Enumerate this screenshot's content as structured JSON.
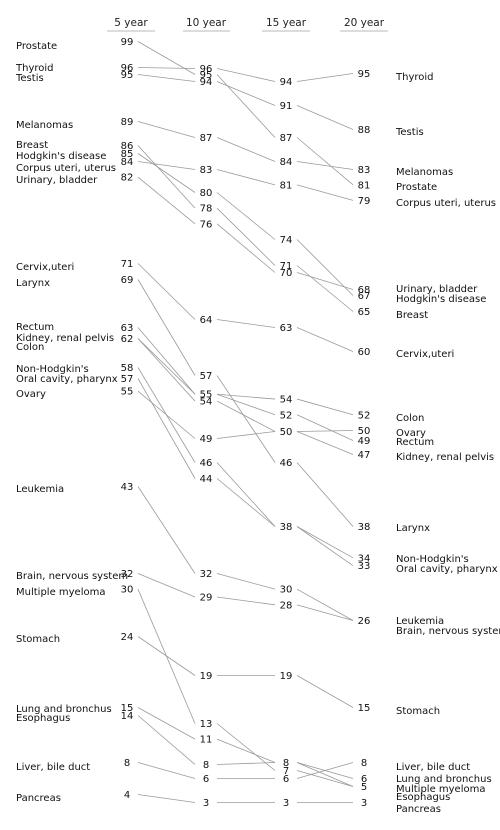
{
  "chart_data": {
    "type": "slopegraph",
    "columns": [
      "5 year",
      "10 year",
      "15 year",
      "20 year"
    ],
    "series": [
      {
        "name": "Prostate",
        "values": [
          99,
          95,
          87,
          81
        ]
      },
      {
        "name": "Thyroid",
        "values": [
          96,
          96,
          94,
          95
        ]
      },
      {
        "name": "Testis",
        "values": [
          95,
          94,
          91,
          88
        ]
      },
      {
        "name": "Melanomas",
        "values": [
          89,
          87,
          84,
          83
        ]
      },
      {
        "name": "Breast",
        "values": [
          86,
          78,
          71,
          65
        ]
      },
      {
        "name": "Hodgkin's disease",
        "values": [
          85,
          80,
          74,
          67
        ]
      },
      {
        "name": "Corpus uteri, uterus",
        "values": [
          84,
          83,
          81,
          79
        ]
      },
      {
        "name": "Urinary, bladder",
        "values": [
          82,
          76,
          70,
          68
        ]
      },
      {
        "name": "Cervix,uteri",
        "values": [
          71,
          64,
          63,
          60
        ]
      },
      {
        "name": "Larynx",
        "values": [
          69,
          57,
          46,
          38
        ]
      },
      {
        "name": "Rectum",
        "values": [
          63,
          55,
          52,
          49
        ]
      },
      {
        "name": "Kidney, renal pelvis",
        "values": [
          62,
          54,
          50,
          47
        ]
      },
      {
        "name": "Colon",
        "values": [
          62,
          55,
          54,
          52
        ]
      },
      {
        "name": "Non-Hodgkin's",
        "values": [
          58,
          46,
          38,
          34
        ]
      },
      {
        "name": "Oral cavity, pharynx",
        "values": [
          57,
          44,
          38,
          33
        ]
      },
      {
        "name": "Ovary",
        "values": [
          55,
          49,
          50,
          50
        ]
      },
      {
        "name": "Leukemia",
        "values": [
          43,
          32,
          30,
          26
        ]
      },
      {
        "name": "Brain, nervous system",
        "values": [
          32,
          29,
          28,
          26
        ]
      },
      {
        "name": "Multiple myeloma",
        "values": [
          30,
          13,
          7,
          5
        ]
      },
      {
        "name": "Stomach",
        "values": [
          24,
          19,
          19,
          15
        ]
      },
      {
        "name": "Lung and bronchus",
        "values": [
          15,
          11,
          8,
          6
        ]
      },
      {
        "name": "Esophagus",
        "values": [
          14,
          8,
          8,
          5
        ]
      },
      {
        "name": "Liver, bile duct",
        "values": [
          8,
          6,
          6,
          8
        ]
      },
      {
        "name": "Pancreas",
        "values": [
          4,
          3,
          3,
          3
        ]
      }
    ],
    "value_labels": [
      [
        99,
        96,
        95,
        89,
        86,
        85,
        84,
        82,
        71,
        69,
        63,
        62,
        58,
        57,
        55,
        43,
        32,
        30,
        24,
        15,
        14,
        8,
        4
      ],
      [
        96,
        95,
        94,
        87,
        83,
        80,
        78,
        76,
        64,
        57,
        55,
        54,
        49,
        46,
        44,
        32,
        29,
        19,
        13,
        11,
        8,
        6,
        3
      ],
      [
        94,
        91,
        87,
        84,
        81,
        74,
        71,
        70,
        63,
        54,
        52,
        50,
        46,
        38,
        30,
        28,
        19,
        8,
        7,
        6,
        3
      ],
      [
        95,
        88,
        83,
        81,
        79,
        68,
        67,
        65,
        60,
        52,
        50,
        49,
        47,
        38,
        34,
        33,
        26,
        15,
        8,
        6,
        5,
        3
      ]
    ],
    "left_labels": [
      "Prostate",
      "Thyroid",
      "Testis",
      "Melanomas",
      "Breast",
      "Hodgkin's disease",
      "Corpus uteri, uterus",
      "Urinary, bladder",
      "Cervix,uteri",
      "Larynx",
      "Rectum",
      "Kidney, renal pelvis",
      "Colon",
      "Non-Hodgkin's",
      "Oral cavity, pharynx",
      "Ovary",
      "Leukemia",
      "Brain, nervous system",
      "Multiple myeloma",
      "Stomach",
      "Lung and bronchus",
      "Esophagus",
      "Liver, bile duct",
      "Pancreas"
    ],
    "right_labels": [
      "Thyroid",
      "Testis",
      "Melanomas",
      "Prostate",
      "Corpus uteri, uterus",
      "Urinary, bladder",
      "Hodgkin's disease",
      "Breast",
      "Cervix,uteri",
      "Colon",
      "Ovary",
      "Rectum",
      "Kidney, renal pelvis",
      "Larynx",
      "Non-Hodgkin's",
      "Oral cavity, pharynx",
      "Leukemia",
      "Brain, nervous system",
      "Stomach",
      "Liver, bile duct",
      "Lung and bronchus",
      "Multiple myeloma",
      "Esophagus",
      "Pancreas"
    ]
  }
}
